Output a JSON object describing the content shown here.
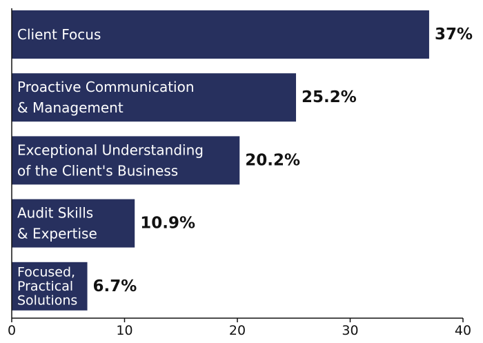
{
  "chart_data": {
    "type": "bar",
    "orientation": "horizontal",
    "categories": [
      "Client Focus",
      "Proactive Communication & Management",
      "Exceptional Understanding of the Client's Business",
      "Audit Skills & Expertise",
      "Focused, Practical Solutions"
    ],
    "category_lines": [
      [
        "Client Focus"
      ],
      [
        "Proactive Communication",
        "& Management"
      ],
      [
        "Exceptional Understanding",
        "of the Client's Business"
      ],
      [
        "Audit Skills",
        "& Expertise"
      ],
      [
        "Focused,",
        "Practical",
        "Solutions"
      ]
    ],
    "values": [
      37,
      25.2,
      20.2,
      10.9,
      6.7
    ],
    "value_labels": [
      "37%",
      "25.2%",
      "20.2%",
      "10.9%",
      "6.7%"
    ],
    "title": "",
    "xlabel": "",
    "ylabel": "",
    "xlim": [
      0,
      40
    ],
    "xticks": [
      0,
      10,
      20,
      30,
      40
    ],
    "grid": false,
    "bar_color": "#27305e",
    "label_color": "#ffffff",
    "axis_color": "#111111"
  }
}
